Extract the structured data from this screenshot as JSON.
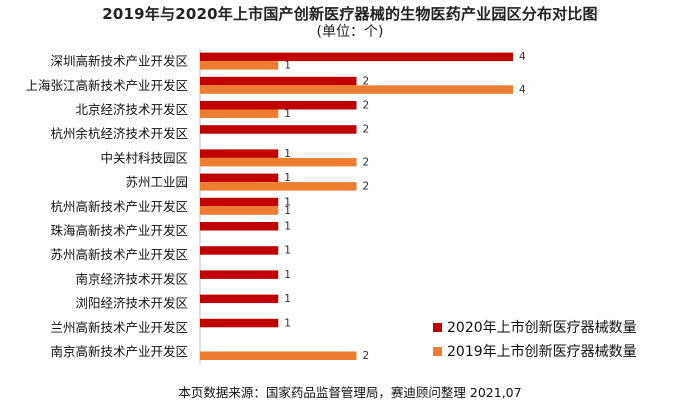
{
  "chart_data": {
    "type": "bar",
    "orientation": "horizontal",
    "title": "2019年与2020年上市国产创新医疗器械的生物医药产业园区分布对比图",
    "subtitle": "(单位：个)",
    "source": "本页数据来源：国家药品监督管理局，赛迪顾问整理 2021,07",
    "categories": [
      "深圳高新技术产业开发区",
      "上海张江高新技术产业开发区",
      "北京经济技术开发区",
      "杭州余杭经济技术开发区",
      "中关村科技园区",
      "苏州工业园",
      "杭州高新技术产业开发区",
      "珠海高新技术产业开发区",
      "苏州高新技术产业开发区",
      "南京经济技术开发区",
      "浏阳经济技术开发区",
      "兰州高新技术产业开发区",
      "南京高新技术产业开发区"
    ],
    "series": [
      {
        "name": "2020年上市创新医疗器械数量",
        "color": "#c00000",
        "values": [
          4,
          2,
          2,
          2,
          1,
          1,
          1,
          1,
          1,
          1,
          1,
          1,
          0
        ]
      },
      {
        "name": "2019年上市创新医疗器械数量",
        "color": "#ed7d31",
        "values": [
          1,
          4,
          1,
          0,
          2,
          2,
          1,
          0,
          0,
          0,
          0,
          0,
          2
        ]
      }
    ],
    "xlim": [
      0,
      4
    ],
    "grid": false,
    "legend_position": "bottom-right"
  }
}
